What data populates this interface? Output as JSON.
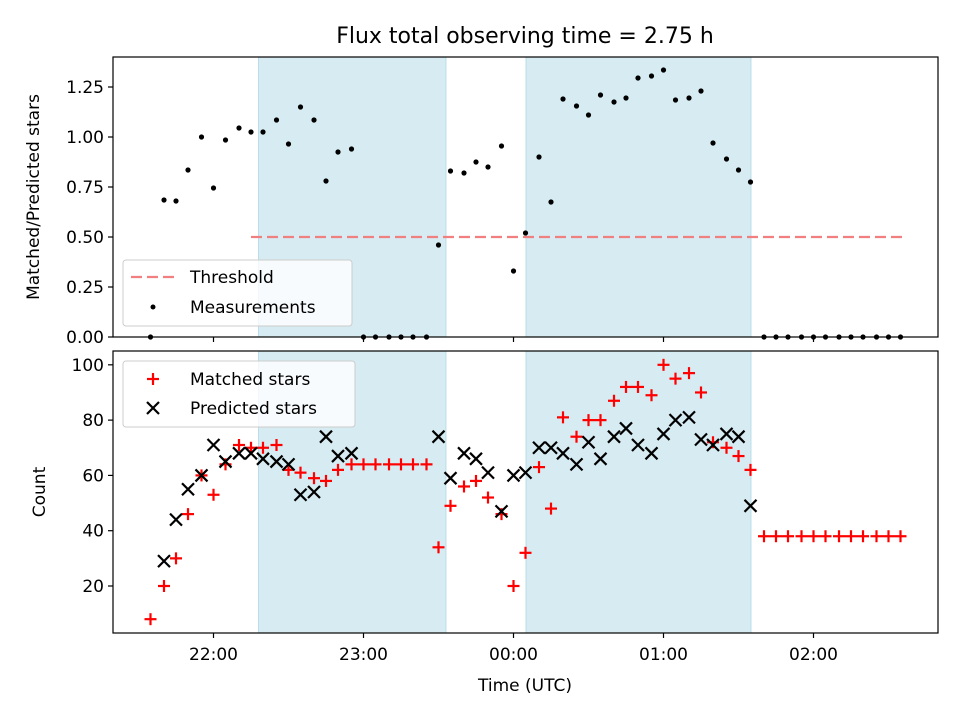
{
  "figure": {
    "title": "Flux total observing time = 2.75 h"
  },
  "chart_data": [
    {
      "type": "scatter",
      "ylabel": "Matched/Predicted stars",
      "xlabel": "",
      "ylim": [
        0,
        1.4
      ],
      "yticks": [
        "0.00",
        "0.25",
        "0.50",
        "0.75",
        "1.00",
        "1.25"
      ],
      "shaded_spans_hours": [
        [
          -1.7,
          -0.45
        ],
        [
          0.0833,
          1.5833
        ]
      ],
      "threshold": {
        "name": "Threshold",
        "value": 0.5,
        "x_range": [
          -1.75,
          2.6
        ],
        "color": "#f08080"
      },
      "legend": {
        "placement": "lower-left",
        "entries": [
          "Threshold",
          "Measurements"
        ]
      },
      "series": [
        {
          "name": "Measurements",
          "color": "#000000",
          "points": [
            [
              -2.42,
              0
            ],
            [
              -2.33,
              0.685
            ],
            [
              -2.25,
              0.68
            ],
            [
              -2.17,
              0.835
            ],
            [
              -2.08,
              1.0
            ],
            [
              -2.0,
              0.745
            ],
            [
              -1.92,
              0.985
            ],
            [
              -1.83,
              1.045
            ],
            [
              -1.75,
              1.025
            ],
            [
              -1.67,
              1.025
            ],
            [
              -1.58,
              1.085
            ],
            [
              -1.5,
              0.965
            ],
            [
              -1.42,
              1.15
            ],
            [
              -1.33,
              1.085
            ],
            [
              -1.25,
              0.78
            ],
            [
              -1.17,
              0.925
            ],
            [
              -1.08,
              0.94
            ],
            [
              -1.0,
              0
            ],
            [
              -0.92,
              0
            ],
            [
              -0.83,
              0
            ],
            [
              -0.75,
              0
            ],
            [
              -0.67,
              0
            ],
            [
              -0.58,
              0
            ],
            [
              -0.5,
              0.46
            ],
            [
              -0.42,
              0.83
            ],
            [
              -0.33,
              0.82
            ],
            [
              -0.25,
              0.875
            ],
            [
              -0.17,
              0.85
            ],
            [
              -0.08,
              0.955
            ],
            [
              0.0,
              0.33
            ],
            [
              0.08,
              0.52
            ],
            [
              0.17,
              0.9
            ],
            [
              0.25,
              0.675
            ],
            [
              0.33,
              1.19
            ],
            [
              0.42,
              1.155
            ],
            [
              0.5,
              1.11
            ],
            [
              0.58,
              1.21
            ],
            [
              0.67,
              1.175
            ],
            [
              0.75,
              1.195
            ],
            [
              0.83,
              1.295
            ],
            [
              0.92,
              1.305
            ],
            [
              1.0,
              1.335
            ],
            [
              1.08,
              1.185
            ],
            [
              1.17,
              1.195
            ],
            [
              1.25,
              1.23
            ],
            [
              1.33,
              0.97
            ],
            [
              1.42,
              0.89
            ],
            [
              1.5,
              0.835
            ],
            [
              1.58,
              0.775
            ],
            [
              1.67,
              0
            ],
            [
              1.75,
              0
            ],
            [
              1.83,
              0
            ],
            [
              1.92,
              0
            ],
            [
              2.0,
              0
            ],
            [
              2.08,
              0
            ],
            [
              2.17,
              0
            ],
            [
              2.25,
              0
            ],
            [
              2.33,
              0
            ],
            [
              2.42,
              0
            ],
            [
              2.5,
              0
            ],
            [
              2.58,
              0
            ]
          ]
        }
      ]
    },
    {
      "type": "scatter",
      "xlabel": "Time (UTC)",
      "ylabel": "Count",
      "xlim_hours": [
        -2.67,
        2.83
      ],
      "ylim": [
        3,
        105
      ],
      "yticks": [
        "20",
        "40",
        "60",
        "80",
        "100"
      ],
      "xticks": [
        {
          "h": -2,
          "label": "22:00"
        },
        {
          "h": -1,
          "label": "23:00"
        },
        {
          "h": 0,
          "label": "00:00"
        },
        {
          "h": 1,
          "label": "01:00"
        },
        {
          "h": 2,
          "label": "02:00"
        }
      ],
      "shaded_spans_hours": [
        [
          -1.7,
          -0.45
        ],
        [
          0.0833,
          1.5833
        ]
      ],
      "legend": {
        "placement": "upper-left",
        "entries": [
          "Matched stars",
          "Predicted stars"
        ]
      },
      "series": [
        {
          "name": "Matched stars",
          "marker": "plus",
          "color": "#ff0000",
          "points": [
            [
              -2.42,
              8
            ],
            [
              -2.33,
              20
            ],
            [
              -2.25,
              30
            ],
            [
              -2.17,
              46
            ],
            [
              -2.08,
              60
            ],
            [
              -2.0,
              53
            ],
            [
              -1.92,
              64
            ],
            [
              -1.83,
              71
            ],
            [
              -1.75,
              70
            ],
            [
              -1.67,
              70
            ],
            [
              -1.58,
              71
            ],
            [
              -1.5,
              62
            ],
            [
              -1.42,
              61
            ],
            [
              -1.33,
              59
            ],
            [
              -1.25,
              58
            ],
            [
              -1.17,
              62
            ],
            [
              -1.08,
              64
            ],
            [
              -1.0,
              64
            ],
            [
              -0.92,
              64
            ],
            [
              -0.83,
              64
            ],
            [
              -0.75,
              64
            ],
            [
              -0.67,
              64
            ],
            [
              -0.58,
              64
            ],
            [
              -0.5,
              34
            ],
            [
              -0.42,
              49
            ],
            [
              -0.33,
              56
            ],
            [
              -0.25,
              58
            ],
            [
              -0.17,
              52
            ],
            [
              -0.08,
              46
            ],
            [
              0.0,
              20
            ],
            [
              0.08,
              32
            ],
            [
              0.17,
              63
            ],
            [
              0.25,
              48
            ],
            [
              0.33,
              81
            ],
            [
              0.42,
              74
            ],
            [
              0.5,
              80
            ],
            [
              0.58,
              80
            ],
            [
              0.67,
              87
            ],
            [
              0.75,
              92
            ],
            [
              0.83,
              92
            ],
            [
              0.92,
              89
            ],
            [
              1.0,
              100
            ],
            [
              1.08,
              95
            ],
            [
              1.17,
              97
            ],
            [
              1.25,
              90
            ],
            [
              1.33,
              72
            ],
            [
              1.42,
              70
            ],
            [
              1.5,
              67
            ],
            [
              1.58,
              62
            ],
            [
              1.67,
              38
            ],
            [
              1.75,
              38
            ],
            [
              1.83,
              38
            ],
            [
              1.92,
              38
            ],
            [
              2.0,
              38
            ],
            [
              2.08,
              38
            ],
            [
              2.17,
              38
            ],
            [
              2.25,
              38
            ],
            [
              2.33,
              38
            ],
            [
              2.42,
              38
            ],
            [
              2.5,
              38
            ],
            [
              2.58,
              38
            ]
          ]
        },
        {
          "name": "Predicted stars",
          "marker": "x",
          "color": "#000000",
          "points": [
            [
              -2.33,
              29
            ],
            [
              -2.25,
              44
            ],
            [
              -2.17,
              55
            ],
            [
              -2.08,
              60
            ],
            [
              -2.0,
              71
            ],
            [
              -1.92,
              65
            ],
            [
              -1.83,
              68
            ],
            [
              -1.75,
              68
            ],
            [
              -1.67,
              66
            ],
            [
              -1.58,
              65
            ],
            [
              -1.5,
              64
            ],
            [
              -1.42,
              53
            ],
            [
              -1.33,
              54
            ],
            [
              -1.25,
              74
            ],
            [
              -1.17,
              67
            ],
            [
              -1.08,
              68
            ],
            [
              -0.5,
              74
            ],
            [
              -0.42,
              59
            ],
            [
              -0.33,
              68
            ],
            [
              -0.25,
              66
            ],
            [
              -0.17,
              61
            ],
            [
              -0.08,
              47
            ],
            [
              0.0,
              60
            ],
            [
              0.08,
              61
            ],
            [
              0.17,
              70
            ],
            [
              0.25,
              70
            ],
            [
              0.33,
              68
            ],
            [
              0.42,
              64
            ],
            [
              0.5,
              72
            ],
            [
              0.58,
              66
            ],
            [
              0.67,
              74
            ],
            [
              0.75,
              77
            ],
            [
              0.83,
              71
            ],
            [
              0.92,
              68
            ],
            [
              1.0,
              75
            ],
            [
              1.08,
              80
            ],
            [
              1.17,
              81
            ],
            [
              1.25,
              73
            ],
            [
              1.33,
              71
            ],
            [
              1.42,
              75
            ],
            [
              1.5,
              74
            ],
            [
              1.58,
              49
            ]
          ]
        }
      ]
    }
  ]
}
